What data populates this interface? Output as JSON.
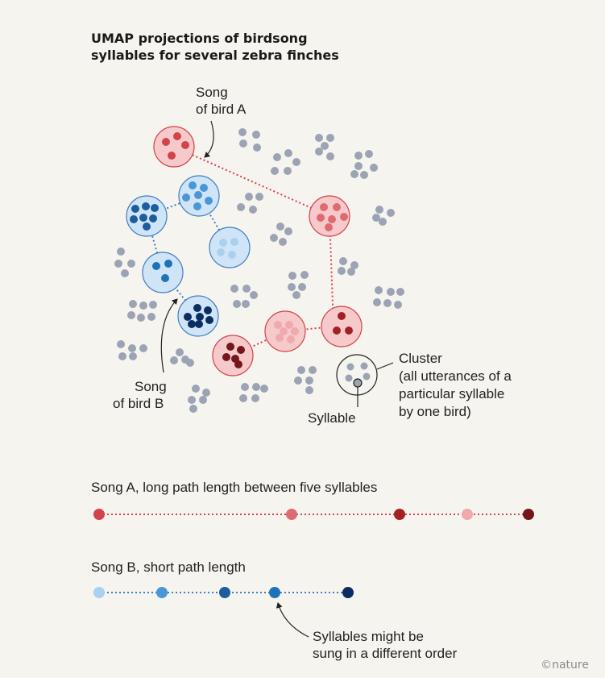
{
  "title": {
    "line1": "UMAP projections of birdsong",
    "line2": "syllables for several zebra finches"
  },
  "labels": {
    "song_bird_a": [
      "Song",
      "of bird A"
    ],
    "song_bird_b": [
      "Song",
      "of bird B"
    ],
    "cluster": [
      "Cluster",
      "(all utterances of a",
      "particular syllable",
      "by one bird)"
    ],
    "syllable": "Syllable"
  },
  "paths": {
    "song_a_caption": "Song A, long path length between five syllables",
    "song_b_caption": "Song B, short path length",
    "order_note": [
      "Syllables might be",
      "sung in a different order"
    ]
  },
  "credit": "©nature",
  "colors": {
    "background": "#f6f4ee",
    "grey_dot": "#9ba3b4",
    "red_path": "#d9414a",
    "blue_path": "#3f7fc0",
    "song_a_syllables": [
      "#d3434b",
      "#de6b70",
      "#a32025",
      "#f0a9ad",
      "#74161a"
    ],
    "song_b_syllables": [
      "#a9d0ef",
      "#4a97d6",
      "#1d5c9e",
      "#1e73b8",
      "#0a2e62"
    ]
  }
}
